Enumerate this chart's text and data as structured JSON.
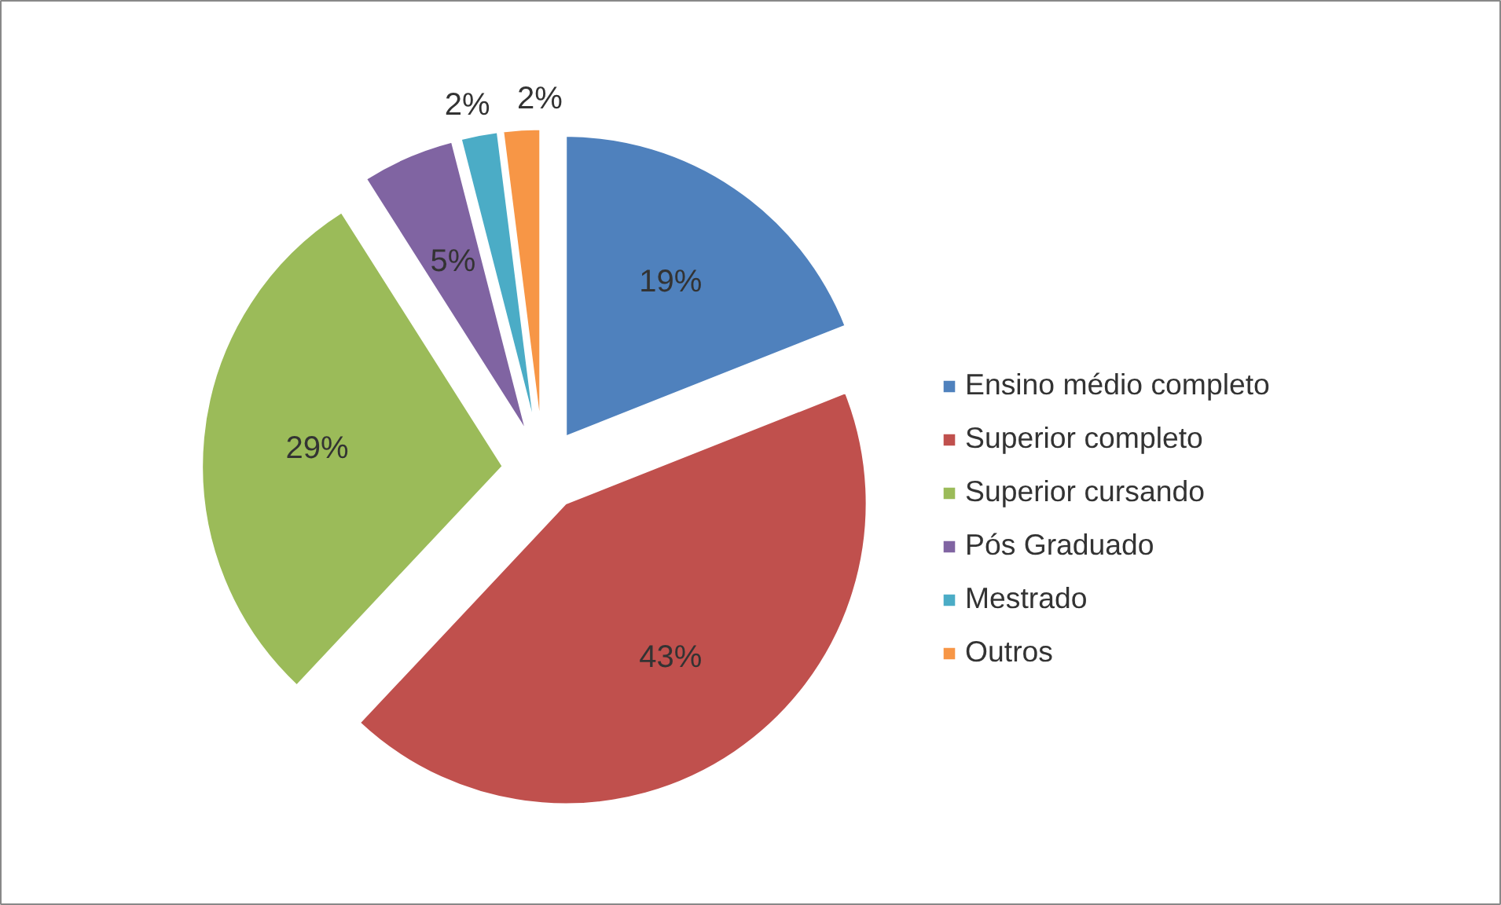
{
  "chart_data": {
    "type": "pie",
    "categories": [
      "Ensino médio completo",
      "Superior completo",
      "Superior cursando",
      "Pós Graduado",
      "Mestrado",
      "Outros"
    ],
    "values": [
      19,
      43,
      29,
      5,
      2,
      2
    ],
    "colors": [
      "#4f81bd",
      "#c0504d",
      "#9bbb59",
      "#8064a2",
      "#4bacc6",
      "#f79646"
    ],
    "value_labels": [
      "19%",
      "43%",
      "29%",
      "5%",
      "2%",
      "2%"
    ],
    "legend": "right"
  }
}
